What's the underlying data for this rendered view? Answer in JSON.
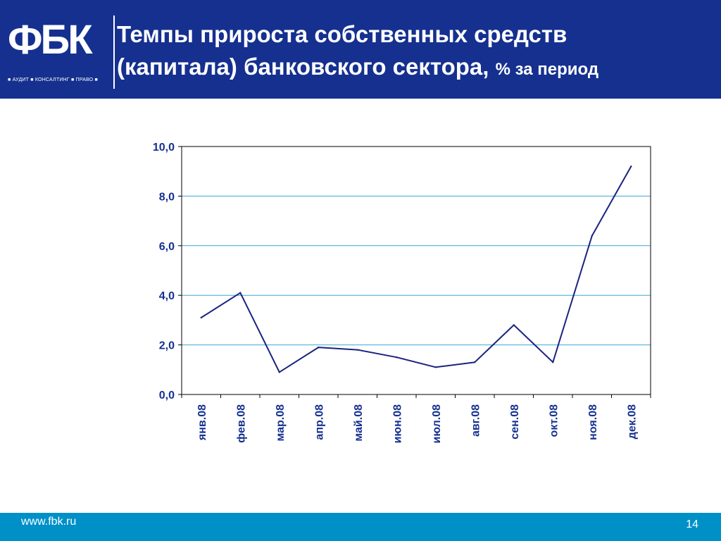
{
  "header": {
    "logo_text": "ФБК",
    "logo_tagline": "■ АУДИТ ■ КОНСАЛТИНГ ■ ПРАВО ■",
    "title_line1": "Темпы прироста собственных средств",
    "title_line2": "(капитала) банковского сектора,",
    "title_unit": "% за период"
  },
  "footer": {
    "url": "www.fbk.ru",
    "page_number": "14"
  },
  "colors": {
    "header_bg": "#15308f",
    "footer_bg": "#0090c8",
    "line": "#1a237e",
    "grid": "#3aa8d8",
    "axis_text": "#15308f"
  },
  "chart_data": {
    "type": "line",
    "title": "",
    "xlabel": "",
    "ylabel": "",
    "categories": [
      "янв.08",
      "фев.08",
      "мар.08",
      "апр.08",
      "май.08",
      "июн.08",
      "июл.08",
      "авг.08",
      "сен.08",
      "окт.08",
      "ноя.08",
      "дек.08"
    ],
    "series": [
      {
        "values": [
          3.1,
          4.1,
          0.9,
          1.9,
          1.8,
          1.5,
          1.1,
          1.3,
          2.8,
          1.3,
          6.4,
          9.2
        ]
      }
    ],
    "ylim": [
      0,
      10
    ],
    "yticks": [
      "0,0",
      "2,0",
      "4,0",
      "6,0",
      "8,0",
      "10,0"
    ],
    "grid": true,
    "legend": "none"
  }
}
